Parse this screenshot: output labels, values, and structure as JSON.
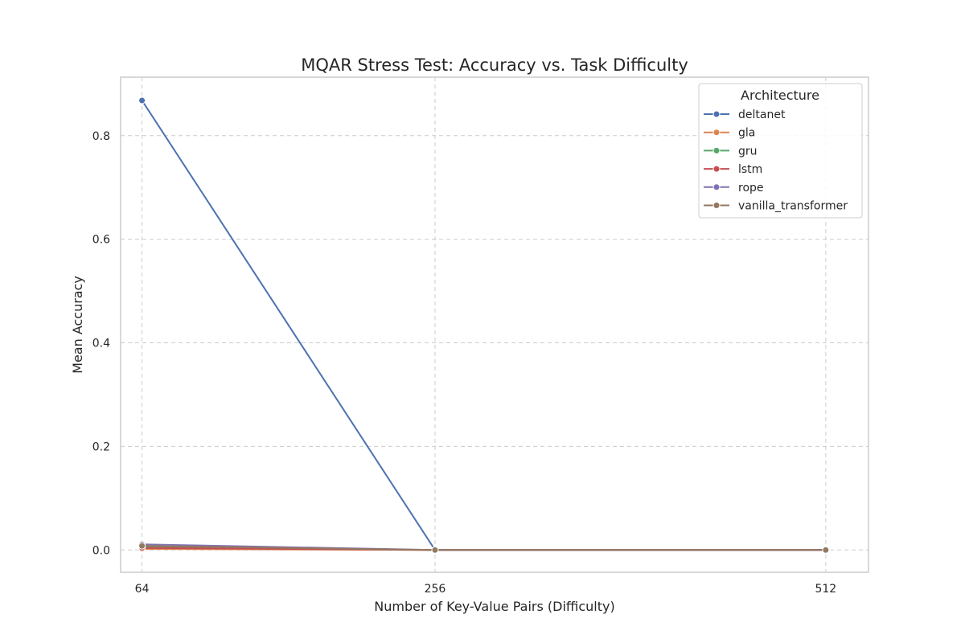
{
  "chart_data": {
    "type": "line",
    "title": "MQAR Stress Test: Accuracy vs. Task Difficulty",
    "xlabel": "Number of Key-Value Pairs (Difficulty)",
    "ylabel": "Mean Accuracy",
    "x": [
      64,
      256,
      512
    ],
    "x_tick_labels": [
      "64",
      "256",
      "512"
    ],
    "xlim": [
      50,
      540
    ],
    "ylim": [
      -0.043,
      0.913
    ],
    "y_ticks": [
      0.0,
      0.2,
      0.4,
      0.6,
      0.8
    ],
    "y_tick_labels": [
      "0.0",
      "0.2",
      "0.4",
      "0.6",
      "0.8"
    ],
    "grid": true,
    "legend": {
      "title": "Architecture",
      "position": "top-right"
    },
    "series": [
      {
        "name": "deltanet",
        "color": "#4c72b0",
        "values": [
          0.868,
          0.0,
          0.0
        ]
      },
      {
        "name": "gla",
        "color": "#dd8452",
        "values": [
          0.002,
          0.0,
          0.0
        ]
      },
      {
        "name": "gru",
        "color": "#55a868",
        "values": [
          0.006,
          0.0,
          0.0
        ]
      },
      {
        "name": "lstm",
        "color": "#c44e52",
        "values": [
          0.004,
          0.0,
          0.0
        ]
      },
      {
        "name": "rope",
        "color": "#8172b3",
        "values": [
          0.011,
          0.0,
          0.0
        ]
      },
      {
        "name": "vanilla_transformer",
        "color": "#937860",
        "values": [
          0.008,
          0.0,
          0.0
        ]
      }
    ]
  }
}
